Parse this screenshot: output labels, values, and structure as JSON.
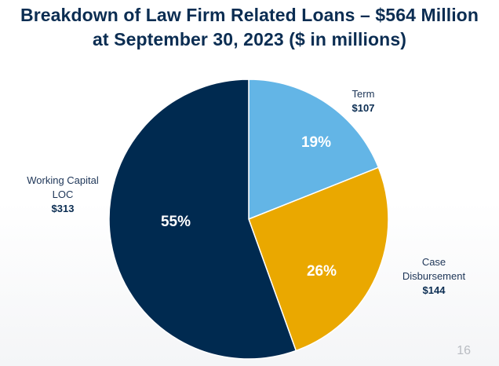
{
  "slide": {
    "title_line1": "Breakdown of Law Firm Related Loans – $564 Million",
    "title_line2": "at September 30, 2023 ($ in millions)",
    "page_number": "16"
  },
  "chart_data": {
    "type": "pie",
    "title": "Breakdown of Law Firm Related Loans – $564 Million at September 30, 2023 ($ in millions)",
    "total": 564,
    "slices": [
      {
        "name_lines": [
          "Term"
        ],
        "value": 107,
        "value_label": "$107",
        "percent_label": "19%",
        "color": "#63b5e6"
      },
      {
        "name_lines": [
          "Case",
          "Disbursement"
        ],
        "value": 144,
        "value_label": "$144",
        "percent_label": "26%",
        "color": "#eaa800"
      },
      {
        "name_lines": [
          "Working Capital",
          "LOC"
        ],
        "value": 313,
        "value_label": "$313",
        "percent_label": "55%",
        "color": "#002a50"
      }
    ],
    "start_angle_deg": 0,
    "direction": "clockwise",
    "legend": "none"
  }
}
